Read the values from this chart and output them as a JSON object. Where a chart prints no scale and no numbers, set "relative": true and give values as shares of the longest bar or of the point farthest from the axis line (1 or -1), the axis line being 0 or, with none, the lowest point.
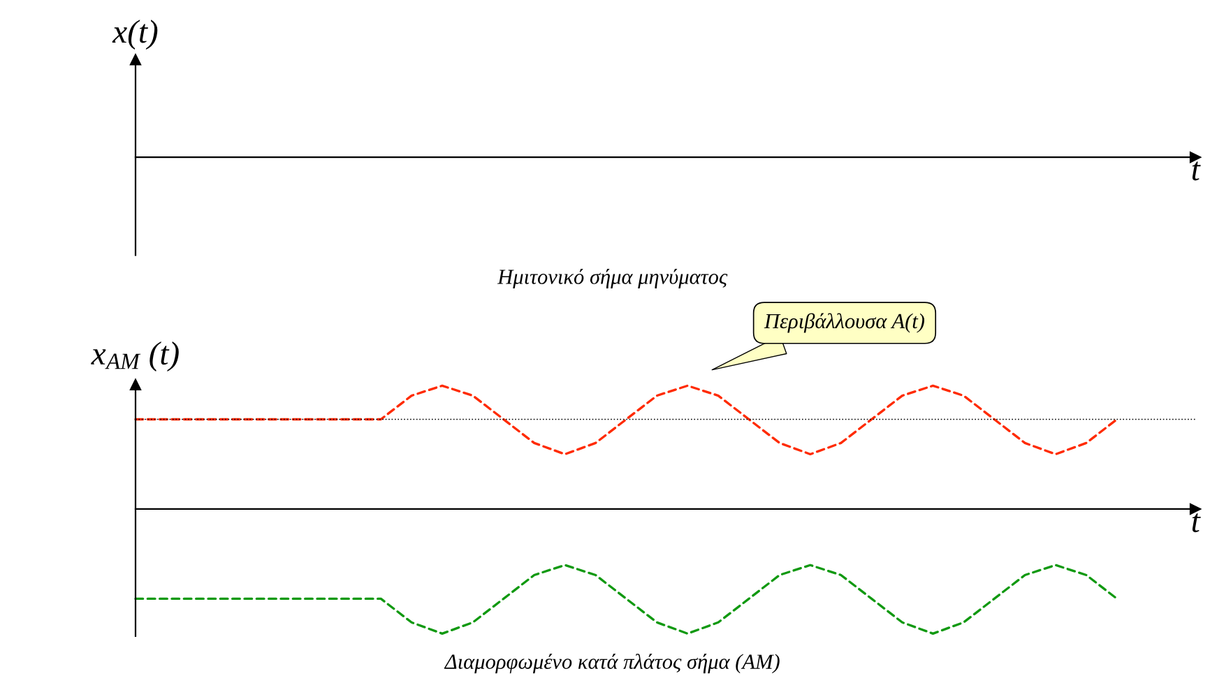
{
  "chart_data": [
    {
      "type": "other",
      "ylabel": "x(t)",
      "xlabel": "t",
      "annotations": [
        "Ημιτονικό σήμα μηνύματος"
      ]
    },
    {
      "type": "line",
      "relative": true,
      "ylabel": "x$_{AM}$ (t)",
      "xlabel": "t",
      "line_style": "dashed",
      "marker": "none",
      "legend": false,
      "categories": [
        null,
        null,
        null,
        null,
        null,
        null,
        null,
        null,
        null,
        null,
        null,
        null,
        null,
        null,
        null,
        null,
        null,
        null,
        null,
        null,
        null,
        null,
        null,
        null,
        null,
        null,
        null,
        null,
        null,
        null,
        null,
        null,
        null
      ],
      "series": [
        {
          "color": "#ff2a00",
          "values": [
            0.72,
            0.72,
            0.72,
            0.72,
            0.72,
            0.72,
            0.72,
            0.72,
            0.72,
            0.91,
            0.99,
            0.91,
            0.72,
            0.53,
            0.44,
            0.53,
            0.72,
            0.91,
            0.99,
            0.91,
            0.72,
            0.53,
            0.44,
            0.53,
            0.72,
            0.91,
            0.99,
            0.91,
            0.72,
            0.53,
            0.44,
            0.53,
            0.72
          ]
        },
        {
          "color": "#119911",
          "values": [
            -0.72,
            -0.72,
            -0.72,
            -0.72,
            -0.72,
            -0.72,
            -0.72,
            -0.72,
            -0.72,
            -0.91,
            -1,
            -0.91,
            -0.72,
            -0.53,
            -0.45,
            -0.53,
            -0.72,
            -0.91,
            -1,
            -0.91,
            -0.72,
            -0.53,
            -0.45,
            -0.53,
            -0.72,
            -0.91,
            -1,
            -0.91,
            -0.72,
            -0.53,
            -0.45,
            -0.53,
            -0.72
          ]
        }
      ],
      "ref_lines": [
        {
          "axis": "y",
          "value": 0.72,
          "color": "#000000",
          "line_style": "dotted"
        }
      ],
      "annotations": [
        {
          "text": "Περιβάλλουσα A(t)"
        },
        "Διαμορφωμένο κατά πλάτος σήμα (AM)"
      ]
    }
  ]
}
